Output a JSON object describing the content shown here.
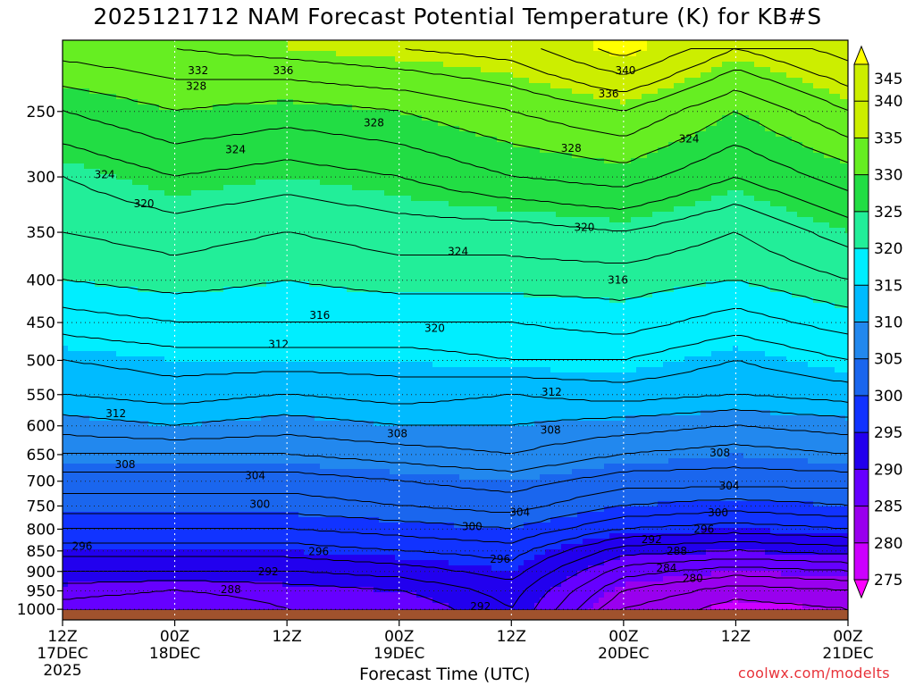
{
  "chart_data": {
    "type": "heatmap",
    "title": "2025121712 NAM Forecast Potential Temperature (K) for KB#S",
    "xlabel": "Forecast Time (UTC)",
    "credit": "coolwx.com/modelts",
    "y_axis": {
      "scale": "log",
      "inverted": true,
      "range": [
        1030,
        205
      ],
      "ticks": [
        250,
        300,
        350,
        400,
        450,
        500,
        550,
        600,
        650,
        700,
        750,
        800,
        850,
        900,
        950,
        1000
      ],
      "grid": true
    },
    "x_axis": {
      "ticks": [
        {
          "hours": 0,
          "label": "12Z",
          "sublabel": "17DEC",
          "sublabel2": "2025"
        },
        {
          "hours": 12,
          "label": "00Z",
          "sublabel": "18DEC"
        },
        {
          "hours": 24,
          "label": "12Z"
        },
        {
          "hours": 36,
          "label": "00Z",
          "sublabel": "19DEC"
        },
        {
          "hours": 48,
          "label": "12Z"
        },
        {
          "hours": 60,
          "label": "00Z",
          "sublabel": "20DEC"
        },
        {
          "hours": 72,
          "label": "12Z"
        },
        {
          "hours": 84,
          "label": "00Z",
          "sublabel": "21DEC"
        }
      ],
      "range": [
        0,
        84
      ],
      "grid": true
    },
    "colorbar": {
      "levels": [
        275,
        280,
        285,
        290,
        295,
        300,
        305,
        310,
        315,
        320,
        325,
        330,
        335,
        340,
        345
      ],
      "colors": [
        "#ff00ff",
        "#cc00ff",
        "#9900ee",
        "#6600ff",
        "#2200ee",
        "#1133ff",
        "#1a66ee",
        "#2288ee",
        "#00bbff",
        "#00eeff",
        "#22ee99",
        "#22dd44",
        "#66ee22",
        "#ccee00",
        "#ffff00"
      ]
    },
    "times": [
      0,
      12,
      24,
      36,
      48,
      60,
      72,
      84
    ],
    "pressure_levels": [
      1000,
      950,
      900,
      850,
      800,
      750,
      700,
      650,
      600,
      550,
      500,
      450,
      400,
      350,
      300,
      250,
      210
    ],
    "theta_profiles": [
      [
        287,
        289,
        292,
        295,
        298,
        301,
        303,
        306,
        309,
        312,
        314,
        317,
        320,
        322,
        324,
        328,
        333
      ],
      [
        286,
        288,
        292,
        295,
        298,
        301,
        303,
        306,
        310,
        313,
        315,
        318,
        321,
        323,
        326,
        330,
        334
      ],
      [
        288,
        289,
        292,
        295,
        298,
        301,
        303,
        306,
        309,
        312,
        315,
        318,
        320,
        322,
        325,
        329,
        335
      ],
      [
        288,
        290,
        293,
        296,
        299,
        302,
        304,
        307,
        310,
        313,
        315,
        318,
        321,
        323,
        326,
        330,
        336
      ],
      [
        292,
        293,
        295,
        297,
        300,
        303,
        305,
        308,
        310,
        312,
        316,
        318,
        321,
        323,
        328,
        332,
        337
      ],
      [
        282,
        284,
        287,
        291,
        296,
        300,
        303,
        306,
        309,
        313,
        316,
        319,
        321,
        324,
        329,
        334,
        341
      ],
      [
        279,
        281,
        285,
        290,
        295,
        299,
        303,
        305,
        308,
        312,
        314,
        317,
        320,
        322,
        326,
        330,
        336
      ],
      [
        280,
        282,
        286,
        291,
        296,
        300,
        303,
        306,
        309,
        313,
        316,
        319,
        322,
        325,
        329,
        334,
        339
      ]
    ],
    "contour_labels": [
      {
        "text": "332",
        "t": 14.5,
        "p": 223
      },
      {
        "text": "336",
        "t": 23.6,
        "p": 223
      },
      {
        "text": "340",
        "t": 60.2,
        "p": 223
      },
      {
        "text": "328",
        "t": 14.3,
        "p": 233
      },
      {
        "text": "336",
        "t": 58.4,
        "p": 238
      },
      {
        "text": "328",
        "t": 33.3,
        "p": 258
      },
      {
        "text": "328",
        "t": 54.4,
        "p": 277
      },
      {
        "text": "324",
        "t": 67.0,
        "p": 270
      },
      {
        "text": "324",
        "t": 18.5,
        "p": 278
      },
      {
        "text": "324",
        "t": 4.5,
        "p": 298
      },
      {
        "text": "320",
        "t": 8.7,
        "p": 323
      },
      {
        "text": "320",
        "t": 55.8,
        "p": 345
      },
      {
        "text": "324",
        "t": 42.3,
        "p": 369
      },
      {
        "text": "316",
        "t": 59.4,
        "p": 400
      },
      {
        "text": "316",
        "t": 27.5,
        "p": 441
      },
      {
        "text": "320",
        "t": 39.8,
        "p": 457
      },
      {
        "text": "312",
        "t": 23.1,
        "p": 478
      },
      {
        "text": "312",
        "t": 52.3,
        "p": 546
      },
      {
        "text": "312",
        "t": 5.7,
        "p": 580
      },
      {
        "text": "308",
        "t": 35.8,
        "p": 613
      },
      {
        "text": "308",
        "t": 52.2,
        "p": 607
      },
      {
        "text": "308",
        "t": 6.7,
        "p": 668
      },
      {
        "text": "308",
        "t": 70.3,
        "p": 647
      },
      {
        "text": "304",
        "t": 20.6,
        "p": 689
      },
      {
        "text": "304",
        "t": 71.3,
        "p": 709
      },
      {
        "text": "304",
        "t": 48.9,
        "p": 763
      },
      {
        "text": "300",
        "t": 21.1,
        "p": 746
      },
      {
        "text": "300",
        "t": 70.1,
        "p": 764
      },
      {
        "text": "300",
        "t": 43.8,
        "p": 794
      },
      {
        "text": "296",
        "t": 2.1,
        "p": 839
      },
      {
        "text": "296",
        "t": 27.4,
        "p": 852
      },
      {
        "text": "296",
        "t": 46.8,
        "p": 870
      },
      {
        "text": "296",
        "t": 68.6,
        "p": 800
      },
      {
        "text": "292",
        "t": 63.0,
        "p": 823
      },
      {
        "text": "288",
        "t": 65.7,
        "p": 850
      },
      {
        "text": "284",
        "t": 64.6,
        "p": 892
      },
      {
        "text": "280",
        "t": 67.4,
        "p": 917
      },
      {
        "text": "292",
        "t": 22.0,
        "p": 900
      },
      {
        "text": "288",
        "t": 18.0,
        "p": 946
      },
      {
        "text": "292",
        "t": 44.7,
        "p": 992
      }
    ]
  }
}
